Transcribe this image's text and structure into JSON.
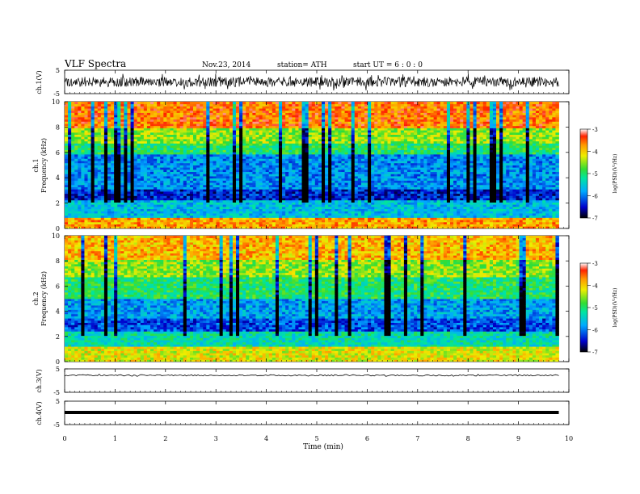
{
  "header": {
    "title": "VLF  Spectra",
    "date": "Nov.23, 2014",
    "station": "station= ATH",
    "start": "start  UT  =   6  : 0  : 0"
  },
  "chart_data": [
    {
      "type": "line",
      "panel": "ch1-waveform",
      "ylabel": "ch.1(V)",
      "ylim": [
        -5,
        5
      ],
      "yticks": [
        "5",
        "-5"
      ],
      "xlim": [
        0,
        10
      ],
      "series": [
        {
          "description_values": "dense noise waveform, amplitude about ±1.5 V"
        }
      ]
    },
    {
      "type": "heatmap",
      "panel": "ch1-spectrogram",
      "ylabel": "Frequency  (kHz)",
      "channel_label": "ch.1",
      "ylim": [
        0,
        10
      ],
      "yticks": [
        "0",
        "2",
        "4",
        "6",
        "8",
        "10"
      ],
      "xlim": [
        0,
        10
      ],
      "colorbar": {
        "label": "log(PSD)(V²/Hz)",
        "range": [
          -7,
          -3
        ],
        "ticks": [
          "-3",
          "-4",
          "-5",
          "-6",
          "-7"
        ]
      },
      "bands": [
        {
          "from": 0,
          "to": 0.8,
          "level": -3.8
        },
        {
          "from": 0.8,
          "to": 2.2,
          "level": -5.6
        },
        {
          "from": 2.2,
          "to": 3.0,
          "level": -6.4
        },
        {
          "from": 3.0,
          "to": 5.8,
          "level": -5.9
        },
        {
          "from": 5.8,
          "to": 6.6,
          "level": -5.0
        },
        {
          "from": 6.6,
          "to": 7.8,
          "level": -4.5
        },
        {
          "from": 7.8,
          "to": 10,
          "level": -3.6
        }
      ]
    },
    {
      "type": "heatmap",
      "panel": "ch2-spectrogram",
      "ylabel": "Frequency  (kHz)",
      "channel_label": "ch.2",
      "ylim": [
        0,
        10
      ],
      "yticks": [
        "0",
        "2",
        "4",
        "6",
        "8",
        "10"
      ],
      "xlim": [
        0,
        10
      ],
      "colorbar": {
        "label": "log(PSD)(V²/Hz)",
        "range": [
          -7,
          -3
        ],
        "ticks": [
          "-3",
          "-4",
          "-5",
          "-6",
          "-7"
        ]
      },
      "bands": [
        {
          "from": 0,
          "to": 1.2,
          "level": -4.2
        },
        {
          "from": 1.2,
          "to": 2.4,
          "level": -5.3
        },
        {
          "from": 2.4,
          "to": 3.4,
          "level": -6.2
        },
        {
          "from": 3.4,
          "to": 5.0,
          "level": -5.8
        },
        {
          "from": 5.0,
          "to": 6.6,
          "level": -5.0
        },
        {
          "from": 6.6,
          "to": 8.0,
          "level": -4.5
        },
        {
          "from": 8.0,
          "to": 10,
          "level": -3.9
        }
      ]
    },
    {
      "type": "line",
      "panel": "ch3-waveform",
      "ylabel": "ch.3(V)",
      "ylim": [
        -5,
        5
      ],
      "yticks": [
        "5",
        "-5"
      ],
      "xlim": [
        0,
        10
      ],
      "series": [
        {
          "description_values": "near-flat trace around 0 V"
        }
      ]
    },
    {
      "type": "line",
      "panel": "ch4-waveform",
      "ylabel": "ch.4(V)",
      "ylim": [
        -5,
        5
      ],
      "yticks": [
        "5",
        "-5"
      ],
      "xlim": [
        0,
        10
      ],
      "series": [
        {
          "description_values": "flat thick trace at 0 V"
        }
      ]
    }
  ],
  "xaxis": {
    "label": "Time  (min)",
    "ticks": [
      "0",
      "1",
      "2",
      "3",
      "4",
      "5",
      "6",
      "7",
      "8",
      "9",
      "10"
    ],
    "data_end": 9.8
  }
}
